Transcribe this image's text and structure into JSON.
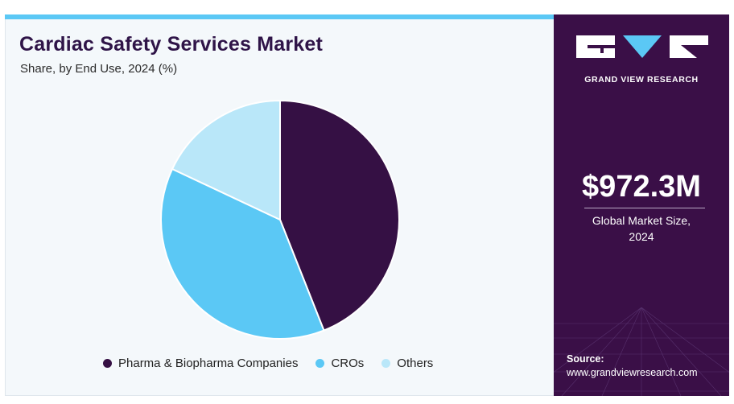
{
  "colors": {
    "accent_bar": "#5bc8f5",
    "panel_bg": "#3a0f47",
    "title": "#2f1448"
  },
  "chart_data": {
    "type": "pie",
    "title": "Cardiac Safety Services Market",
    "subtitle": "Share, by End Use, 2024 (%)",
    "legend_position": "bottom",
    "slices": [
      {
        "name": "Pharma & Biopharma Companies",
        "value": 44,
        "color": "#351044"
      },
      {
        "name": "CROs",
        "value": 38,
        "color": "#5bc8f5"
      },
      {
        "name": "Others",
        "value": 18,
        "color": "#b9e7f9"
      }
    ]
  },
  "brand": {
    "logo_text": "GRAND VIEW RESEARCH"
  },
  "highlight": {
    "value": "$972.3M",
    "caption_line1": "Global Market Size,",
    "caption_line2": "2024"
  },
  "source": {
    "label": "Source:",
    "url": "www.grandviewresearch.com"
  }
}
